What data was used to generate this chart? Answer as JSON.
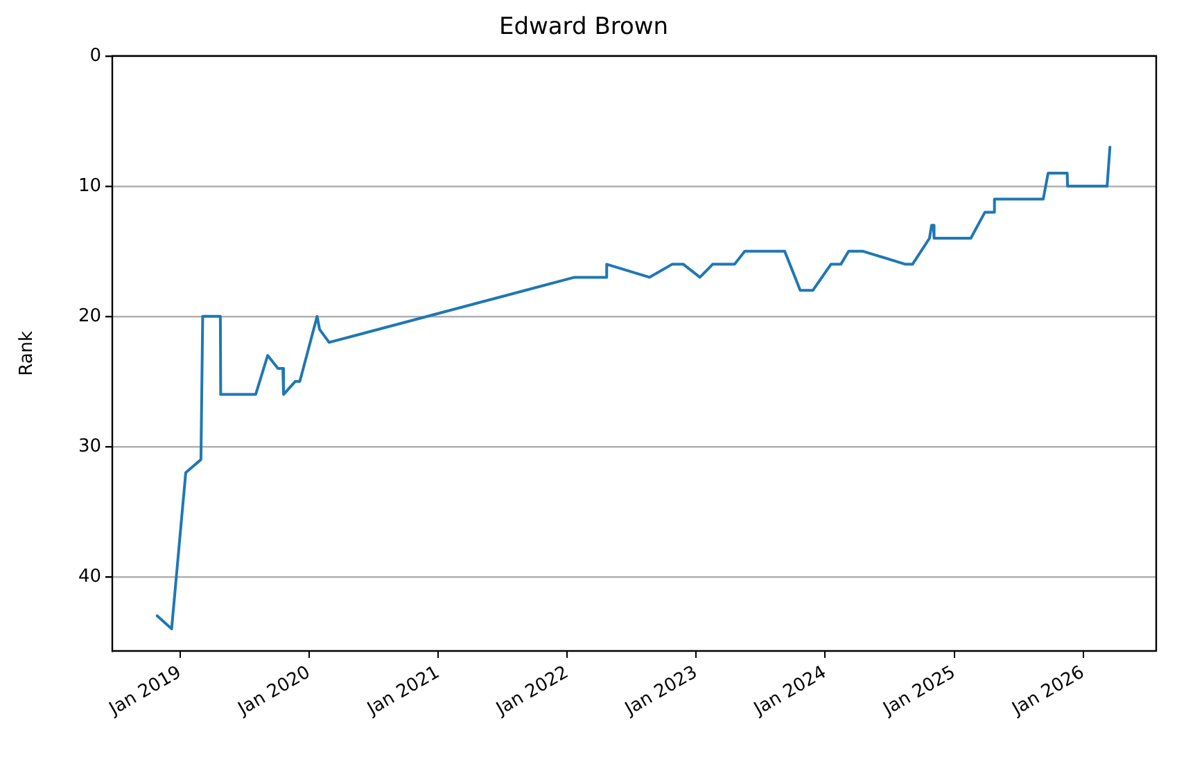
{
  "chart_data": {
    "type": "line",
    "title": "Edward Brown",
    "ylabel": "Rank",
    "x": [
      "2018-10-28",
      "2018-12-08",
      "2019-01-17",
      "2019-03-01",
      "2019-03-06",
      "2019-04-25",
      "2019-04-26",
      "2019-08-03",
      "2019-09-06",
      "2019-10-05",
      "2019-10-19",
      "2019-10-21",
      "2019-11-23",
      "2019-12-06",
      "2020-01-24",
      "2020-01-31",
      "2020-02-27",
      "2022-01-22",
      "2022-04-22",
      "2022-04-23",
      "2022-08-22",
      "2022-10-25",
      "2022-11-26",
      "2023-01-12",
      "2023-02-17",
      "2023-04-20",
      "2023-05-19",
      "2023-09-09",
      "2023-10-23",
      "2023-11-28",
      "2024-01-18",
      "2024-02-15",
      "2024-03-08",
      "2024-04-18",
      "2024-08-16",
      "2024-09-05",
      "2024-10-23",
      "2024-10-29",
      "2024-11-03",
      "2024-11-05",
      "2025-02-17",
      "2025-03-29",
      "2025-04-24",
      "2025-04-25",
      "2025-09-10",
      "2025-09-24",
      "2025-11-17",
      "2025-11-18",
      "2026-03-10",
      "2026-03-18"
    ],
    "series": [
      {
        "color": "#1f77b4",
        "values": [
          43,
          44,
          32,
          31,
          20,
          20,
          26,
          26,
          23,
          24,
          24,
          26,
          25,
          25,
          20,
          21,
          22,
          17,
          17,
          16,
          17,
          16,
          16,
          17,
          16,
          16,
          15,
          15,
          18,
          18,
          16,
          16,
          15,
          15,
          16,
          16,
          14,
          13,
          13,
          14,
          14,
          12,
          12,
          11,
          11,
          9,
          9,
          10,
          10,
          7
        ]
      }
    ],
    "xlim": [
      "2018-06-23",
      "2026-07-27"
    ],
    "xticks": [
      {
        "value": "2019-01-01",
        "label": "Jan 2019"
      },
      {
        "value": "2020-01-01",
        "label": "Jan 2020"
      },
      {
        "value": "2021-01-01",
        "label": "Jan 2021"
      },
      {
        "value": "2022-01-01",
        "label": "Jan 2022"
      },
      {
        "value": "2023-01-01",
        "label": "Jan 2023"
      },
      {
        "value": "2024-01-01",
        "label": "Jan 2024"
      },
      {
        "value": "2025-01-01",
        "label": "Jan 2025"
      },
      {
        "value": "2026-01-01",
        "label": "Jan 2026"
      }
    ],
    "ylim": [
      45.7,
      0
    ],
    "yticks": [
      0,
      10,
      20,
      30,
      40
    ],
    "grid": "y",
    "marker": "none",
    "line_style": "solid",
    "legend": false
  }
}
